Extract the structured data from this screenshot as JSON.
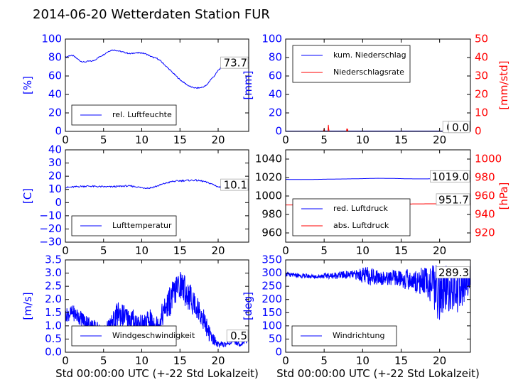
{
  "title": "2014-06-20 Wetterdaten Station FUR",
  "colors": {
    "primary": "#0000ff",
    "secondary": "#ff0000",
    "axis_blue": "#0000ff",
    "axis_red": "#ff0000"
  },
  "chart_data": [
    {
      "id": "humidity",
      "type": "line",
      "ylabel": "[%]",
      "ylim": [
        0,
        100
      ],
      "yticks": [
        "0",
        "20",
        "40",
        "60",
        "80",
        "100"
      ],
      "xlim": [
        0,
        24
      ],
      "xticks": [
        "0",
        "5",
        "10",
        "15",
        "20"
      ],
      "annotation": "73.7",
      "legend": "upper-left / lower-left",
      "series": [
        {
          "name": "rel. Luftfeuchte",
          "color": "#0000ff",
          "x": [
            0,
            0.5,
            1,
            1.5,
            2,
            2.5,
            3,
            3.5,
            4,
            4.5,
            5,
            5.5,
            6,
            6.5,
            7,
            7.5,
            8,
            8.5,
            9,
            9.5,
            10,
            10.5,
            11,
            11.5,
            12,
            12.5,
            13,
            13.5,
            14,
            14.5,
            15,
            15.5,
            16,
            16.5,
            17,
            17.5,
            18,
            18.5,
            19,
            19.5,
            20,
            20.5,
            21,
            21.5,
            22,
            22.5,
            23,
            23.5,
            24
          ],
          "y": [
            80,
            82,
            82,
            79,
            76,
            75,
            76,
            76,
            78,
            81,
            83,
            86,
            88,
            88,
            87,
            86,
            85,
            84,
            85,
            85,
            85,
            84,
            82,
            80,
            79,
            76,
            72,
            68,
            64,
            60,
            56,
            53,
            50,
            48,
            47,
            47,
            48,
            50,
            56,
            60,
            66,
            70,
            72,
            74,
            76,
            77,
            76,
            75,
            73.7
          ]
        }
      ]
    },
    {
      "id": "precip",
      "type": "line",
      "ylabel": "[mm]",
      "ylabel2": "[mm/std]",
      "ylim": [
        0,
        100
      ],
      "yticks": [
        "0",
        "20",
        "40",
        "60",
        "80",
        "100"
      ],
      "ylim2": [
        0,
        50
      ],
      "yticks2": [
        "0",
        "10",
        "20",
        "30",
        "40",
        "50"
      ],
      "xlim": [
        0,
        24
      ],
      "xticks": [
        "0",
        "5",
        "10",
        "15",
        "20"
      ],
      "annotation": "0.0",
      "annotation_b": "0.0",
      "series": [
        {
          "name": "kum. Niederschlag",
          "color": "#0000ff",
          "axis": "left",
          "x": [
            0,
            2,
            4,
            6,
            8,
            10,
            12,
            14,
            16,
            18,
            20,
            22,
            24
          ],
          "y": [
            0.3,
            0.3,
            0.3,
            0.4,
            0.4,
            0.4,
            0.4,
            0.4,
            0.4,
            0.4,
            0.4,
            0.4,
            0.4
          ]
        },
        {
          "name": "Niederschlagsrate",
          "color": "#ff0000",
          "axis": "right",
          "x": [
            0,
            4.9,
            5.0,
            5.05,
            5.1,
            5.5,
            5.55,
            5.6,
            5.65,
            5.7,
            6.0,
            7.9,
            7.95,
            8.0,
            8.05,
            8.1,
            12,
            16,
            24
          ],
          "y": [
            0,
            0,
            1.5,
            0.5,
            0,
            0,
            3.5,
            1,
            0,
            0,
            0,
            0,
            1.5,
            0.5,
            1,
            0,
            0,
            0,
            0
          ]
        }
      ]
    },
    {
      "id": "temperature",
      "type": "line",
      "ylabel": "[C]",
      "ylim": [
        -30,
        40
      ],
      "yticks": [
        "−30",
        "−20",
        "−10",
        "0",
        "10",
        "20",
        "30",
        "40"
      ],
      "xlim": [
        0,
        24
      ],
      "xticks": [
        "0",
        "5",
        "10",
        "15",
        "20"
      ],
      "annotation": "10.1",
      "series": [
        {
          "name": "Lufttemperatur",
          "color": "#0000ff",
          "x": [
            0,
            1,
            2,
            3,
            4,
            5,
            6,
            7,
            8,
            9,
            10,
            11,
            12,
            13,
            14,
            15,
            16,
            17,
            18,
            19,
            20,
            21,
            22,
            23,
            24
          ],
          "y": [
            11.5,
            11.8,
            12.3,
            12.5,
            12.2,
            12.0,
            12.0,
            12.3,
            12.6,
            12.3,
            11.3,
            11.0,
            12.5,
            14.5,
            16.0,
            16.5,
            16.8,
            17.0,
            16.2,
            14.5,
            12.0,
            10.8,
            10.5,
            10.2,
            10.1
          ]
        }
      ]
    },
    {
      "id": "pressure",
      "type": "line",
      "ylabel2": "[hPa]",
      "ylim": [
        950,
        1050
      ],
      "yticks": [
        "960",
        "980",
        "1000",
        "1020",
        "1040"
      ],
      "ylim2": [
        910,
        1010
      ],
      "yticks2": [
        "920",
        "940",
        "960",
        "980",
        "1000"
      ],
      "xlim": [
        0,
        24
      ],
      "xticks": [
        "0",
        "5",
        "10",
        "15",
        "20"
      ],
      "annotation": "1019.0",
      "annotation_b": "951.7",
      "series": [
        {
          "name": "red. Luftdruck",
          "color": "#0000ff",
          "axis": "left",
          "x": [
            0,
            2,
            4,
            6,
            8,
            10,
            12,
            14,
            16,
            18,
            20,
            22,
            24
          ],
          "y": [
            1018.0,
            1017.8,
            1018.0,
            1018.3,
            1018.5,
            1018.8,
            1019.2,
            1019.0,
            1018.6,
            1018.5,
            1018.8,
            1019.0,
            1019.0
          ]
        },
        {
          "name": "abs. Luftdruck",
          "color": "#ff0000",
          "axis": "right",
          "x": [
            0,
            2,
            4,
            6,
            8,
            10,
            12,
            14,
            16,
            18,
            20,
            22,
            24
          ],
          "y": [
            950.3,
            950.3,
            950.5,
            950.7,
            950.9,
            951.1,
            951.3,
            951.4,
            951.4,
            951.5,
            951.6,
            951.7,
            951.7
          ]
        }
      ]
    },
    {
      "id": "wind_speed",
      "type": "line",
      "ylabel": "[m/s]",
      "ylim": [
        0,
        3.5
      ],
      "yticks": [
        "0.0",
        "0.5",
        "1.0",
        "1.5",
        "2.0",
        "2.5",
        "3.0",
        "3.5"
      ],
      "xlim": [
        0,
        24
      ],
      "xticks": [
        "0",
        "5",
        "10",
        "15",
        "20"
      ],
      "xlabel": "Std 00:00:00 UTC (+-22 Std Lokalzeit)",
      "annotation": "0.5",
      "series": [
        {
          "name": "Windgeschwindigkeit",
          "color": "#0000ff",
          "x": [
            0,
            1,
            2,
            3,
            4,
            5,
            6,
            7,
            8,
            9,
            10,
            11,
            12,
            13,
            14,
            15,
            16,
            17,
            18,
            19,
            20,
            21,
            22,
            23,
            24
          ],
          "y": [
            1.4,
            1.5,
            1.3,
            1.1,
            0.9,
            0.7,
            1.0,
            1.5,
            1.3,
            1.2,
            1.0,
            1.2,
            1.0,
            1.6,
            2.1,
            2.6,
            2.2,
            1.8,
            1.3,
            0.6,
            0.3,
            0.3,
            0.4,
            0.3,
            0.5
          ],
          "noise_amplitude": [
            0.25,
            0.3,
            0.3,
            0.3,
            0.3,
            0.3,
            0.4,
            0.5,
            0.45,
            0.45,
            0.4,
            0.45,
            0.45,
            0.5,
            0.6,
            0.55,
            0.6,
            0.5,
            0.45,
            0.3,
            0.1,
            0.1,
            0.1,
            0.1,
            0.1
          ]
        }
      ]
    },
    {
      "id": "wind_dir",
      "type": "line",
      "ylabel": "[deg]",
      "ylim": [
        0,
        350
      ],
      "yticks": [
        "0",
        "50",
        "100",
        "150",
        "200",
        "250",
        "300",
        "350"
      ],
      "xlim": [
        0,
        24
      ],
      "xticks": [
        "0",
        "5",
        "10",
        "15",
        "20"
      ],
      "xlabel": "Std 00:00:00 UTC (+-22 Std Lokalzeit)",
      "annotation": "289.3",
      "series": [
        {
          "name": "Windrichtung",
          "color": "#0000ff",
          "x": [
            0,
            1,
            2,
            3,
            4,
            5,
            6,
            7,
            8,
            9,
            10,
            11,
            12,
            13,
            14,
            15,
            16,
            17,
            18,
            19,
            20,
            21,
            22,
            23,
            24
          ],
          "y": [
            295,
            292,
            290,
            288,
            287,
            290,
            290,
            292,
            293,
            294,
            292,
            290,
            285,
            280,
            282,
            278,
            275,
            268,
            270,
            255,
            220,
            240,
            230,
            240,
            290
          ],
          "noise_amplitude": [
            8,
            8,
            8,
            8,
            8,
            10,
            12,
            14,
            15,
            16,
            30,
            35,
            30,
            25,
            30,
            35,
            40,
            45,
            55,
            80,
            110,
            90,
            90,
            80,
            60
          ]
        }
      ]
    }
  ]
}
